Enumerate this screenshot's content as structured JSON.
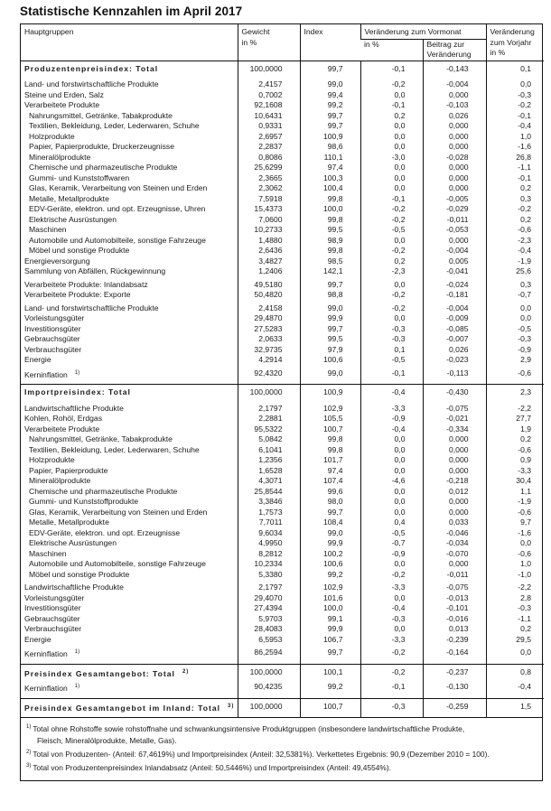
{
  "title": "Statistische Kennzahlen im April 2017",
  "header": {
    "hauptgruppen": "Hauptgruppen",
    "gewicht": "Gewicht",
    "gewicht_unit": "in %",
    "index": "Index",
    "vormonat": "Veränderung zum Vormonat",
    "vormonat_pct": "in %",
    "beitrag1": "Beitrag zur",
    "beitrag2": "Veränderung",
    "vorjahr1": "Veränderung",
    "vorjahr2": "zum Vorjahr",
    "vorjahr3": "in %"
  },
  "sections": [
    {
      "rows": [
        {
          "label": "Produzentenpreisindex: Total",
          "bold": true,
          "values": [
            "100,0000",
            "99,7",
            "-0,1",
            "-0,143",
            "0,1"
          ]
        },
        {
          "label": "Land- und forstwirtschaftliche Produkte",
          "gap": "big",
          "values": [
            "2,4157",
            "99,0",
            "-0,2",
            "-0,004",
            "0,0"
          ]
        },
        {
          "label": "Steine und Erden, Salz",
          "values": [
            "0,7002",
            "99,4",
            "0,0",
            "0,000",
            "-0,3"
          ]
        },
        {
          "label": "Verarbeitete Produkte",
          "values": [
            "92,1608",
            "99,2",
            "-0,1",
            "-0,103",
            "-0,2"
          ]
        },
        {
          "label": "Nahrungsmittel, Getränke, Tabakprodukte",
          "indent": true,
          "values": [
            "10,6431",
            "99,7",
            "0,2",
            "0,026",
            "-0,1"
          ]
        },
        {
          "label": "Textilien, Bekleidung, Leder, Lederwaren, Schuhe",
          "indent": true,
          "values": [
            "0,9331",
            "99,7",
            "0,0",
            "0,000",
            "-0,4"
          ]
        },
        {
          "label": "Holzprodukte",
          "indent": true,
          "values": [
            "2,6957",
            "100,9",
            "0,0",
            "0,000",
            "1,0"
          ]
        },
        {
          "label": "Papier, Papierprodukte, Druckerzeugnisse",
          "indent": true,
          "values": [
            "2,2837",
            "98,6",
            "0,0",
            "0,000",
            "-1,6"
          ]
        },
        {
          "label": "Mineralölprodukte",
          "indent": true,
          "values": [
            "0,8086",
            "110,1",
            "-3,0",
            "-0,028",
            "26,8"
          ]
        },
        {
          "label": "Chemische und pharmazeutische Produkte",
          "indent": true,
          "values": [
            "25,6299",
            "97,4",
            "0,0",
            "0,000",
            "-1,1"
          ]
        },
        {
          "label": "Gummi- und Kunststoffwaren",
          "indent": true,
          "values": [
            "2,3665",
            "100,3",
            "0,0",
            "0,000",
            "-0,1"
          ]
        },
        {
          "label": "Glas, Keramik, Verarbeitung von Steinen und Erden",
          "indent": true,
          "values": [
            "2,3062",
            "100,4",
            "0,0",
            "0,000",
            "0,2"
          ]
        },
        {
          "label": "Metalle, Metallprodukte",
          "indent": true,
          "values": [
            "7,5918",
            "99,8",
            "-0,1",
            "-0,005",
            "0,3"
          ]
        },
        {
          "label": "EDV-Geräte, elektron. und opt. Erzeugnisse, Uhren",
          "indent": true,
          "values": [
            "15,4373",
            "100,0",
            "-0,2",
            "-0,029",
            "-0,2"
          ]
        },
        {
          "label": "Elektrische Ausrüstungen",
          "indent": true,
          "values": [
            "7,0600",
            "99,8",
            "-0,2",
            "-0,011",
            "0,2"
          ]
        },
        {
          "label": "Maschinen",
          "indent": true,
          "values": [
            "10,2733",
            "99,5",
            "-0,5",
            "-0,053",
            "-0,6"
          ]
        },
        {
          "label": "Automobile und Automobilteile, sonstige Fahrzeuge",
          "indent": true,
          "values": [
            "1,4880",
            "98,9",
            "0,0",
            "0,000",
            "-2,3"
          ]
        },
        {
          "label": "Möbel und sonstige Produkte",
          "indent": true,
          "values": [
            "2,6436",
            "99,8",
            "-0,2",
            "-0,004",
            "-0,4"
          ]
        },
        {
          "label": "Energieversorgung",
          "values": [
            "3,4827",
            "98,5",
            "0,2",
            "0,005",
            "-1,9"
          ]
        },
        {
          "label": "Sammlung von Abfällen, Rückgewinnung",
          "values": [
            "1,2406",
            "142,1",
            "-2,3",
            "-0,041",
            "25,6"
          ]
        },
        {
          "label": "Verarbeitete Produkte: Inlandabsatz",
          "gap": "small",
          "values": [
            "49,5180",
            "99,7",
            "0,0",
            "-0,024",
            "0,3"
          ]
        },
        {
          "label": "Verarbeitete Produkte: Exporte",
          "values": [
            "50,4820",
            "98,8",
            "-0,2",
            "-0,181",
            "-0,7"
          ]
        },
        {
          "label": "Land- und forstwirtschaftliche Produkte",
          "gap": "small",
          "values": [
            "2,4158",
            "99,0",
            "-0,2",
            "-0,004",
            "0,0"
          ]
        },
        {
          "label": "Vorleistungsgüter",
          "values": [
            "29,4870",
            "99,9",
            "0,0",
            "-0,009",
            "0,0"
          ]
        },
        {
          "label": "Investitionsgüter",
          "values": [
            "27,5283",
            "99,7",
            "-0,3",
            "-0,085",
            "-0,5"
          ]
        },
        {
          "label": "Gebrauchsgüter",
          "values": [
            "2,0633",
            "99,5",
            "-0,3",
            "-0,007",
            "-0,3"
          ]
        },
        {
          "label": "Verbrauchsgüter",
          "values": [
            "32,9735",
            "97,9",
            "0,1",
            "0,026",
            "-0,9"
          ]
        },
        {
          "label": "Energie",
          "values": [
            "4,2914",
            "100,6",
            "-0,5",
            "-0,023",
            "2,9"
          ]
        },
        {
          "label": "Kerninflation",
          "sup": "1)",
          "gap": "small",
          "values": [
            "92,4320",
            "99,0",
            "-0,1",
            "-0,113",
            "-0,6"
          ]
        }
      ]
    },
    {
      "rows": [
        {
          "label": "Importpreisindex: Total",
          "bold": true,
          "values": [
            "100,0000",
            "100,9",
            "-0,4",
            "-0,430",
            "2,3"
          ]
        },
        {
          "label": "Landwirtschaftliche Produkte",
          "gap": "big",
          "values": [
            "2,1797",
            "102,9",
            "-3,3",
            "-0,075",
            "-2,2"
          ]
        },
        {
          "label": "Kohlen, Rohöl, Erdgas",
          "values": [
            "2,2881",
            "105,5",
            "-0,9",
            "-0,021",
            "27,7"
          ]
        },
        {
          "label": "Verarbeitete Produkte",
          "values": [
            "95,5322",
            "100,7",
            "-0,4",
            "-0,334",
            "1,9"
          ]
        },
        {
          "label": "Nahrungsmittel, Getränke, Tabakprodukte",
          "indent": true,
          "values": [
            "5,0842",
            "99,8",
            "0,0",
            "0,000",
            "0,2"
          ]
        },
        {
          "label": "Textilien, Bekleidung, Leder, Lederwaren, Schuhe",
          "indent": true,
          "values": [
            "6,1041",
            "99,8",
            "0,0",
            "0,000",
            "-0,6"
          ]
        },
        {
          "label": "Holzprodukte",
          "indent": true,
          "values": [
            "1,2356",
            "101,7",
            "0,0",
            "0,000",
            "0,9"
          ]
        },
        {
          "label": "Papier, Papierprodukte",
          "indent": true,
          "values": [
            "1,6528",
            "97,4",
            "0,0",
            "0,000",
            "-3,3"
          ]
        },
        {
          "label": "Mineralölprodukte",
          "indent": true,
          "values": [
            "4,3071",
            "107,4",
            "-4,6",
            "-0,218",
            "30,4"
          ]
        },
        {
          "label": "Chemische und pharmazeutische Produkte",
          "indent": true,
          "values": [
            "25,8544",
            "99,6",
            "0,0",
            "0,012",
            "1,1"
          ]
        },
        {
          "label": "Gummi- und Kunststoffprodukte",
          "indent": true,
          "values": [
            "3,3846",
            "98,0",
            "0,0",
            "0,000",
            "-1,9"
          ]
        },
        {
          "label": "Glas, Keramik, Verarbeitung von Steinen und Erden",
          "indent": true,
          "values": [
            "1,7573",
            "99,7",
            "0,0",
            "0,000",
            "-0,6"
          ]
        },
        {
          "label": "Metalle, Metallprodukte",
          "indent": true,
          "values": [
            "7,7011",
            "108,4",
            "0,4",
            "0,033",
            "9,7"
          ]
        },
        {
          "label": "EDV-Geräte, elektron. und opt. Erzeugnisse",
          "indent": true,
          "values": [
            "9,6034",
            "99,0",
            "-0,5",
            "-0,046",
            "-1,6"
          ]
        },
        {
          "label": "Elektrische Ausrüstungen",
          "indent": true,
          "values": [
            "4,9950",
            "99,9",
            "-0,7",
            "-0,034",
            "0,0"
          ]
        },
        {
          "label": "Maschinen",
          "indent": true,
          "values": [
            "8,2812",
            "100,2",
            "-0,9",
            "-0,070",
            "-0,6"
          ]
        },
        {
          "label": "Automobile und Automobilteile, sonstige Fahrzeuge",
          "indent": true,
          "values": [
            "10,2334",
            "100,6",
            "0,0",
            "0,000",
            "1,0"
          ]
        },
        {
          "label": "Möbel und sonstige Produkte",
          "indent": true,
          "values": [
            "5,3380",
            "99,2",
            "-0,2",
            "-0,011",
            "-1,0"
          ]
        },
        {
          "label": "Landwirtschaftliche Produkte",
          "gap": "small",
          "values": [
            "2,1797",
            "102,9",
            "-3,3",
            "-0,075",
            "-2,2"
          ]
        },
        {
          "label": "Vorleistungsgüter",
          "values": [
            "29,4070",
            "101,6",
            "0,0",
            "-0,013",
            "2,8"
          ]
        },
        {
          "label": "Investitionsgüter",
          "values": [
            "27,4394",
            "100,0",
            "-0,4",
            "-0,101",
            "-0,3"
          ]
        },
        {
          "label": "Gebrauchsgüter",
          "values": [
            "5,9703",
            "99,1",
            "-0,3",
            "-0,016",
            "-1,1"
          ]
        },
        {
          "label": "Verbrauchsgüter",
          "values": [
            "28,4083",
            "99,9",
            "0,0",
            "0,013",
            "0,2"
          ]
        },
        {
          "label": "Energie",
          "values": [
            "6,5953",
            "106,7",
            "-3,3",
            "-0,239",
            "29,5"
          ]
        },
        {
          "label": "Kerninflation",
          "sup": "1)",
          "gap": "small",
          "values": [
            "86,2594",
            "99,7",
            "-0,2",
            "-0,164",
            "0,0"
          ]
        }
      ]
    },
    {
      "rows": [
        {
          "label": "Preisindex Gesamtangebot: Total",
          "bold": true,
          "sup": "2)",
          "values": [
            "100,0000",
            "100,1",
            "-0,2",
            "-0,237",
            "0,8"
          ]
        },
        {
          "label": "Kerninflation",
          "sup": "1)",
          "gap": "small",
          "values": [
            "90,4235",
            "99,2",
            "-0,1",
            "-0,130",
            "-0,4"
          ]
        }
      ]
    },
    {
      "rows": [
        {
          "label": "Preisindex Gesamtangebot im Inland: Total",
          "bold": true,
          "sup": "3)",
          "values": [
            "100,0000",
            "100,7",
            "-0,3",
            "-0,259",
            "1,5"
          ]
        }
      ]
    }
  ],
  "footnotes": [
    {
      "mark": "1)",
      "lines": [
        "Total ohne Rohstoffe sowie rohstoffnahe und schwankungsintensive Produktgruppen (insbesondere landwirtschaftliche Produkte,",
        "Fleisch, Mineralölprodukte, Metalle, Gas)."
      ]
    },
    {
      "mark": "2)",
      "lines": [
        "Total von Produzenten- (Anteil: 67,4619%) und Importpreisindex (Anteil: 32,5381%). Verkettetes Ergebnis: 90,9 (Dezember 2010 = 100)."
      ]
    },
    {
      "mark": "3)",
      "lines": [
        "Total von Produzentenpreisindex Inlandabsatz (Anteil: 50,5446%) und Importpreisindex (Anteil: 49,4554%)."
      ]
    }
  ]
}
